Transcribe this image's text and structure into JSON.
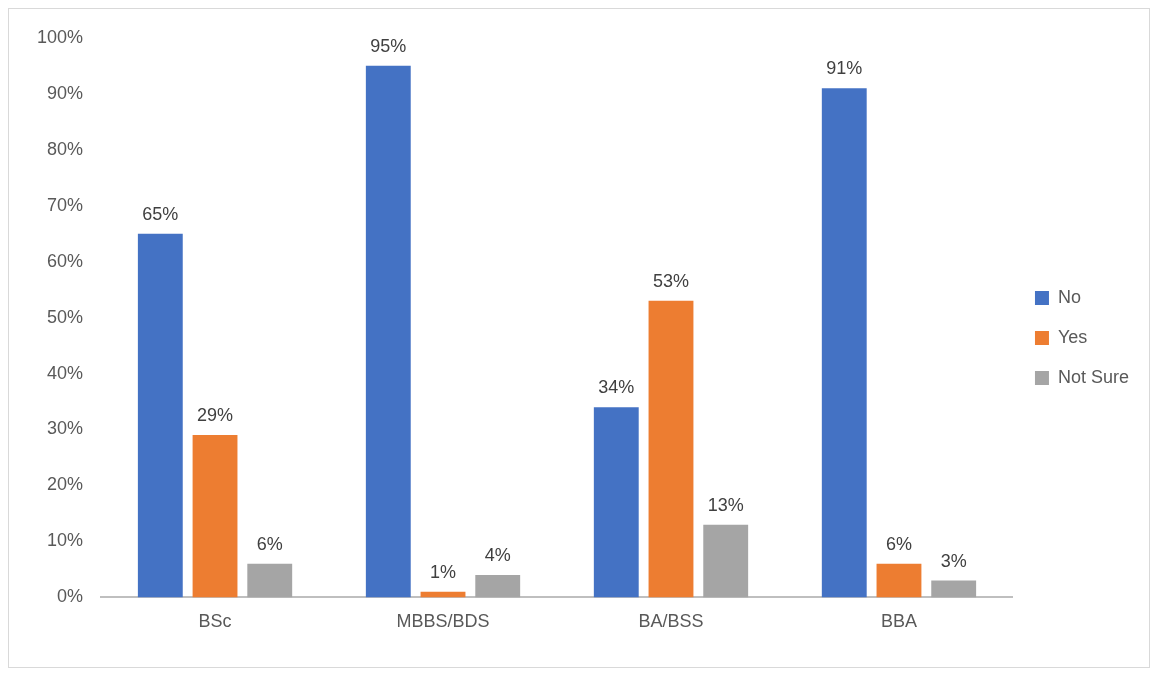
{
  "chart_data": {
    "type": "bar",
    "categories": [
      "BSc",
      "MBBS/BDS",
      "BA/BSS",
      "BBA"
    ],
    "series": [
      {
        "name": "No",
        "color": "#4472c4",
        "values": [
          65,
          95,
          34,
          91
        ],
        "value_labels": [
          "65%",
          "95%",
          "34%",
          "91%"
        ]
      },
      {
        "name": "Yes",
        "color": "#ed7d31",
        "values": [
          29,
          1,
          53,
          6
        ],
        "value_labels": [
          "29%",
          "1%",
          "53%",
          "6%"
        ]
      },
      {
        "name": "Not Sure",
        "color": "#a5a5a5",
        "values": [
          6,
          4,
          13,
          3
        ],
        "value_labels": [
          "6%",
          "4%",
          "13%",
          "3%"
        ]
      }
    ],
    "ylim": [
      0,
      100
    ],
    "yticks": [
      {
        "value": 0,
        "label": "0%"
      },
      {
        "value": 10,
        "label": "10%"
      },
      {
        "value": 20,
        "label": "20%"
      },
      {
        "value": 30,
        "label": "30%"
      },
      {
        "value": 40,
        "label": "40%"
      },
      {
        "value": 50,
        "label": "50%"
      },
      {
        "value": 60,
        "label": "60%"
      },
      {
        "value": 70,
        "label": "70%"
      },
      {
        "value": 80,
        "label": "80%"
      },
      {
        "value": 90,
        "label": "90%"
      },
      {
        "value": 100,
        "label": "100%"
      }
    ],
    "grid": false,
    "legend": "right"
  }
}
